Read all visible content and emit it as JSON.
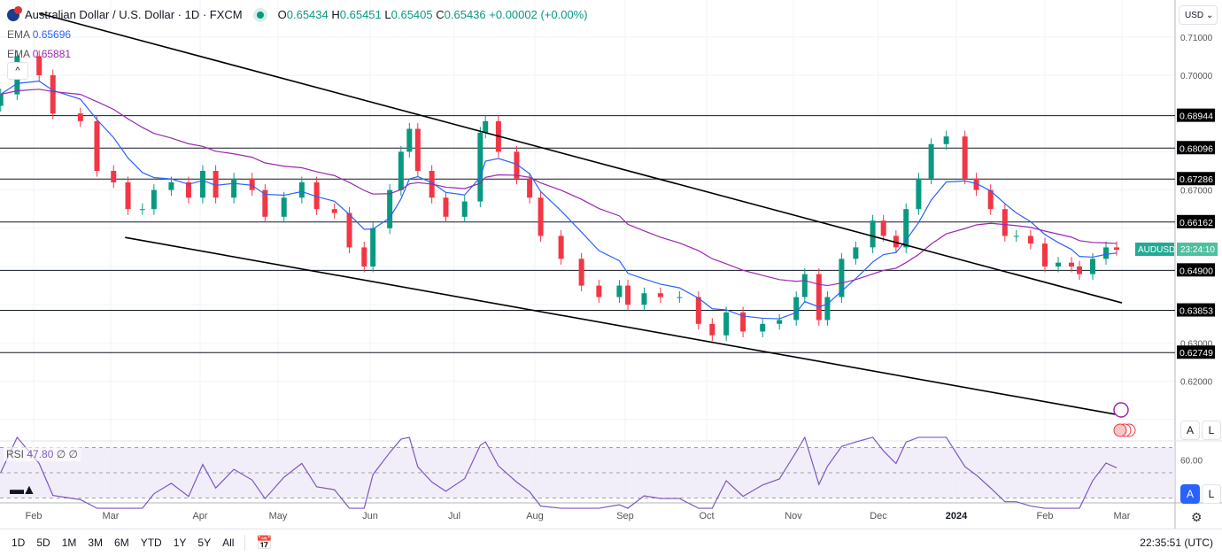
{
  "header": {
    "title": "Australian Dollar / U.S. Dollar · 1D · FXCM",
    "open_label": "O",
    "open": "0.65434",
    "high_label": "H",
    "high": "0.65451",
    "low_label": "L",
    "low": "0.65405",
    "close_label": "C",
    "close": "0.65436",
    "change": "+0.00002 (+0.00%)"
  },
  "indicators": [
    {
      "name": "EMA",
      "value": "0.65696",
      "color": "#2962ff"
    },
    {
      "name": "EMA",
      "value": "0.65881",
      "color": "#9c27b0"
    }
  ],
  "price_axis": {
    "currency": "USD",
    "scale_auto": "A",
    "scale_log": "L",
    "symbol_tag": "AUDUSD",
    "countdown": "23:24:10"
  },
  "rsi": {
    "label": "RSI",
    "value": "47.80",
    "extra1": "∅",
    "extra2": "∅",
    "axis_label": "60.00",
    "scale_auto": "A",
    "scale_log": "L"
  },
  "bottom_bar": {
    "ranges": [
      "1D",
      "5D",
      "1M",
      "3M",
      "6M",
      "YTD",
      "1Y",
      "5Y",
      "All"
    ],
    "clock": "22:35:51 (UTC)"
  },
  "colors": {
    "up": "#089981",
    "down": "#f23645",
    "ema_fast": "#2962ff",
    "ema_slow": "#9c27b0",
    "rsi": "#7e57c2"
  },
  "chart_data": {
    "type": "candlestick",
    "title": "Australian Dollar / U.S. Dollar · 1D · FXCM",
    "ylim": [
      0.611,
      0.717
    ],
    "y_ticks": [
      "0.71000",
      "0.70000",
      "0.67000",
      "0.63000",
      "0.62000"
    ],
    "x_ticks": [
      "Feb",
      "Mar",
      "Apr",
      "May",
      "Jun",
      "Jul",
      "Aug",
      "Sep",
      "Oct",
      "Nov",
      "Dec",
      "2024",
      "Feb",
      "Mar"
    ],
    "closes": [
      [
        "2023-01-20",
        0.695
      ],
      [
        "2023-01-26",
        0.705
      ],
      [
        "2023-02-03",
        0.7
      ],
      [
        "2023-02-08",
        0.69
      ],
      [
        "2023-02-18",
        0.688
      ],
      [
        "2023-02-24",
        0.675
      ],
      [
        "2023-03-02",
        0.672
      ],
      [
        "2023-03-07",
        0.665
      ],
      [
        "2023-03-12",
        0.665
      ],
      [
        "2023-03-16",
        0.67
      ],
      [
        "2023-03-22",
        0.672
      ],
      [
        "2023-03-28",
        0.668
      ],
      [
        "2023-04-02",
        0.675
      ],
      [
        "2023-04-07",
        0.668
      ],
      [
        "2023-04-14",
        0.673
      ],
      [
        "2023-04-21",
        0.67
      ],
      [
        "2023-04-26",
        0.663
      ],
      [
        "2023-05-03",
        0.668
      ],
      [
        "2023-05-09",
        0.672
      ],
      [
        "2023-05-14",
        0.665
      ],
      [
        "2023-05-20",
        0.664
      ],
      [
        "2023-05-25",
        0.655
      ],
      [
        "2023-05-30",
        0.65
      ],
      [
        "2023-06-02",
        0.66
      ],
      [
        "2023-06-08",
        0.67
      ],
      [
        "2023-06-12",
        0.68
      ],
      [
        "2023-06-15",
        0.686
      ],
      [
        "2023-06-18",
        0.675
      ],
      [
        "2023-06-23",
        0.668
      ],
      [
        "2023-06-28",
        0.663
      ],
      [
        "2023-07-05",
        0.667
      ],
      [
        "2023-07-11",
        0.685
      ],
      [
        "2023-07-13",
        0.688
      ],
      [
        "2023-07-18",
        0.68
      ],
      [
        "2023-07-25",
        0.673
      ],
      [
        "2023-07-30",
        0.668
      ],
      [
        "2023-08-03",
        0.658
      ],
      [
        "2023-08-10",
        0.652
      ],
      [
        "2023-08-17",
        0.645
      ],
      [
        "2023-08-23",
        0.642
      ],
      [
        "2023-08-30",
        0.645
      ],
      [
        "2023-09-02",
        0.64
      ],
      [
        "2023-09-08",
        0.643
      ],
      [
        "2023-09-14",
        0.642
      ],
      [
        "2023-09-21",
        0.642
      ],
      [
        "2023-09-28",
        0.635
      ],
      [
        "2023-10-03",
        0.632
      ],
      [
        "2023-10-08",
        0.638
      ],
      [
        "2023-10-14",
        0.633
      ],
      [
        "2023-10-21",
        0.635
      ],
      [
        "2023-10-27",
        0.636
      ],
      [
        "2023-11-02",
        0.642
      ],
      [
        "2023-11-05",
        0.648
      ],
      [
        "2023-11-10",
        0.636
      ],
      [
        "2023-11-13",
        0.642
      ],
      [
        "2023-11-18",
        0.652
      ],
      [
        "2023-11-23",
        0.655
      ],
      [
        "2023-11-29",
        0.662
      ],
      [
        "2023-12-03",
        0.658
      ],
      [
        "2023-12-08",
        0.655
      ],
      [
        "2023-12-12",
        0.665
      ],
      [
        "2023-12-17",
        0.673
      ],
      [
        "2023-12-22",
        0.682
      ],
      [
        "2023-12-28",
        0.684
      ],
      [
        "2024-01-04",
        0.673
      ],
      [
        "2024-01-08",
        0.67
      ],
      [
        "2024-01-13",
        0.665
      ],
      [
        "2024-01-18",
        0.658
      ],
      [
        "2024-01-22",
        0.658
      ],
      [
        "2024-01-27",
        0.656
      ],
      [
        "2024-02-01",
        0.65
      ],
      [
        "2024-02-06",
        0.651
      ],
      [
        "2024-02-11",
        0.65
      ],
      [
        "2024-02-14",
        0.648
      ],
      [
        "2024-02-19",
        0.652
      ],
      [
        "2024-02-24",
        0.655
      ],
      [
        "2024-02-28",
        0.65436
      ]
    ],
    "horizontal_levels": [
      "0.68944",
      "0.68096",
      "0.67286",
      "0.66162",
      "0.64900",
      "0.63853",
      "0.62749"
    ],
    "trend_lines": [
      {
        "from": [
          "2023-02-03",
          0.7162
        ],
        "to": [
          "2024-03-01",
          0.6405
        ]
      },
      {
        "from": [
          "2023-03-06",
          0.6576
        ],
        "to": [
          "2024-02-28",
          0.6113
        ]
      }
    ],
    "rsi_levels": [
      70,
      50,
      30
    ]
  }
}
